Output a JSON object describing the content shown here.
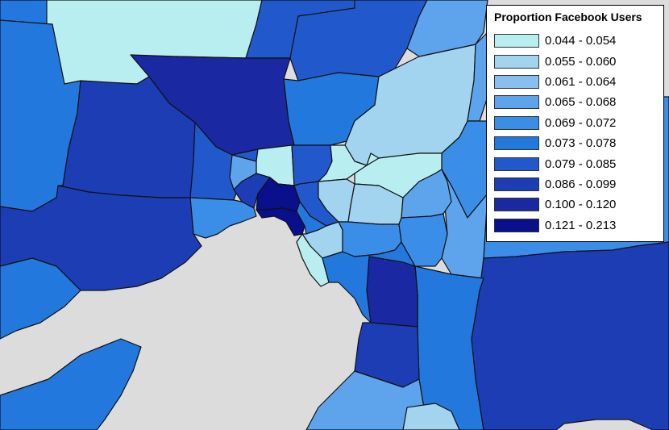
{
  "legend": {
    "title": "Proportion Facebook Users",
    "classes": [
      {
        "label": "0.044 - 0.054",
        "color": "#b9eef0"
      },
      {
        "label": "0.055 - 0.060",
        "color": "#a2d3ef"
      },
      {
        "label": "0.061 - 0.064",
        "color": "#89bff0"
      },
      {
        "label": "0.065 - 0.068",
        "color": "#5ea4ec"
      },
      {
        "label": "0.069 - 0.072",
        "color": "#3b8ee8"
      },
      {
        "label": "0.073 - 0.078",
        "color": "#2278dc"
      },
      {
        "label": "0.079 - 0.085",
        "color": "#2159cc"
      },
      {
        "label": "0.086 - 0.099",
        "color": "#1d3db5"
      },
      {
        "label": "0.100 - 0.120",
        "color": "#1a28a2"
      },
      {
        "label": "0.121 - 0.213",
        "color": "#0a0f8c"
      }
    ]
  },
  "colors": {
    "water": "#dcdcdc",
    "boundary": "#111111"
  }
}
